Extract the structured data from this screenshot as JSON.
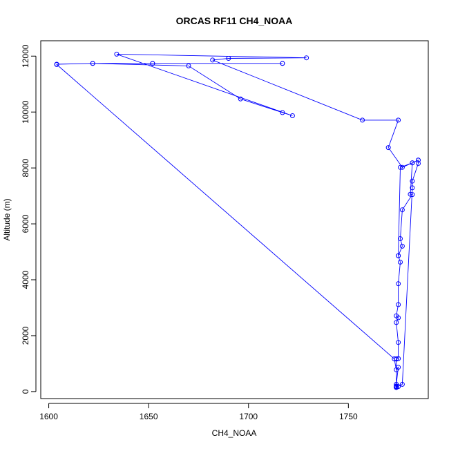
{
  "chart_data": {
    "type": "line",
    "title": "ORCAS RF11 CH4_NOAA",
    "xlabel": "CH4_NOAA",
    "ylabel": "Altitude (m)",
    "xlim": [
      1596,
      1790
    ],
    "ylim": [
      -250,
      12550
    ],
    "xticks": [
      1600,
      1650,
      1700,
      1750
    ],
    "yticks": [
      0,
      2000,
      4000,
      6000,
      8000,
      10000,
      12000
    ],
    "xtick_labels": [
      "1600",
      "1650",
      "1700",
      "1750"
    ],
    "ytick_labels": [
      "0",
      "2000",
      "4000",
      "6000",
      "8000",
      "10000",
      "12000"
    ],
    "series": [
      {
        "name": "CH4_NOAA",
        "color": "#0000ff",
        "marker": "open-circle",
        "x": [
          1774,
          1774,
          1774,
          1775,
          1774,
          1774,
          1774,
          1775,
          1774,
          1773,
          1604,
          1604,
          1622,
          1652,
          1717,
          1717,
          1652,
          1622,
          1670,
          1696,
          1717,
          1722,
          1634,
          1729,
          1690,
          1682,
          1757,
          1775,
          1770,
          1777,
          1785,
          1782,
          1781,
          1782,
          1777,
          1776,
          1777,
          1775,
          1776,
          1775,
          1775,
          1774,
          1775,
          1774,
          1775,
          1775,
          1774,
          1774,
          1774,
          1774,
          1777,
          1782,
          1782,
          1785,
          1785,
          1782,
          1776,
          1775
        ],
        "y": [
          150,
          150,
          180,
          180,
          200,
          150,
          260,
          870,
          780,
          1170,
          11700,
          11710,
          11740,
          11740,
          11740,
          11740,
          11740,
          11740,
          11650,
          10470,
          9980,
          9870,
          12070,
          11940,
          11920,
          11860,
          9710,
          9710,
          8730,
          8020,
          8280,
          8180,
          7060,
          7050,
          6500,
          5470,
          5200,
          4860,
          4630,
          3860,
          3110,
          2710,
          2640,
          2470,
          1760,
          1180,
          1160,
          1170,
          180,
          150,
          260,
          7290,
          7530,
          8160,
          8280,
          8180,
          8020,
          4860
        ]
      }
    ]
  }
}
